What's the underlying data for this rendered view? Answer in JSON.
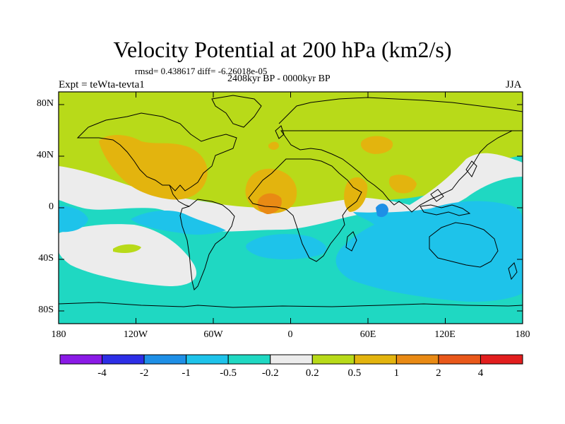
{
  "title": "Velocity Potential at 200 hPa (km2/s)",
  "stats": "rmsd= 0.438617 diff= -6.26018e-05",
  "period": "2408kyr BP - 0000kyr BP",
  "experiment": "Expt = teWta-tevta1",
  "season": "JJA",
  "lat_ticks": [
    "80N",
    "40N",
    "0",
    "40S",
    "80S"
  ],
  "lon_ticks": [
    "180",
    "120W",
    "60W",
    "0",
    "60E",
    "120E",
    "180"
  ],
  "colorbar": {
    "colors": [
      "#8a1ae6",
      "#2d2ee6",
      "#1e8fe6",
      "#1ec3ea",
      "#1fd8c2",
      "#ececec",
      "#b8da19",
      "#e3b40e",
      "#e98a14",
      "#e9581a",
      "#e21e1e"
    ],
    "labels": [
      "-4",
      "-2",
      "-1",
      "-0.5",
      "-0.2",
      "0.2",
      "0.5",
      "1",
      "2",
      "4"
    ]
  },
  "chart_data": {
    "type": "heatmap",
    "title": "Velocity Potential at 200 hPa (km2/s)",
    "subtitle": "2408kyr BP - 0000kyr BP",
    "annotations": [
      "rmsd= 0.438617 diff= -6.26018e-05",
      "Expt = teWta-tevta1",
      "JJA"
    ],
    "x_range": [
      -180,
      180
    ],
    "y_range": [
      -90,
      90
    ],
    "levels": [
      -4,
      -2,
      -1,
      -0.5,
      -0.2,
      0.2,
      0.5,
      1,
      2,
      4
    ],
    "regions": [
      {
        "name": "northern-hemisphere-background",
        "band": "0.2 to 0.5"
      },
      {
        "name": "north-america-atlantic-high",
        "band": "0.5 to 1"
      },
      {
        "name": "west-africa-high",
        "band": "0.5 to 1"
      },
      {
        "name": "west-africa-core",
        "band": "1 to 2"
      },
      {
        "name": "arabia-india-high",
        "band": "0.5 to 1"
      },
      {
        "name": "mediterranean-high",
        "band": "0.5 to 1"
      },
      {
        "name": "southern-ocean-background",
        "band": "-0.5 to -0.2"
      },
      {
        "name": "south-pacific-low",
        "band": "-1 to -0.5"
      },
      {
        "name": "maritime-continent-low",
        "band": "-1 to -0.5"
      },
      {
        "name": "maritime-continent-core",
        "band": "-2 to -1"
      }
    ]
  }
}
